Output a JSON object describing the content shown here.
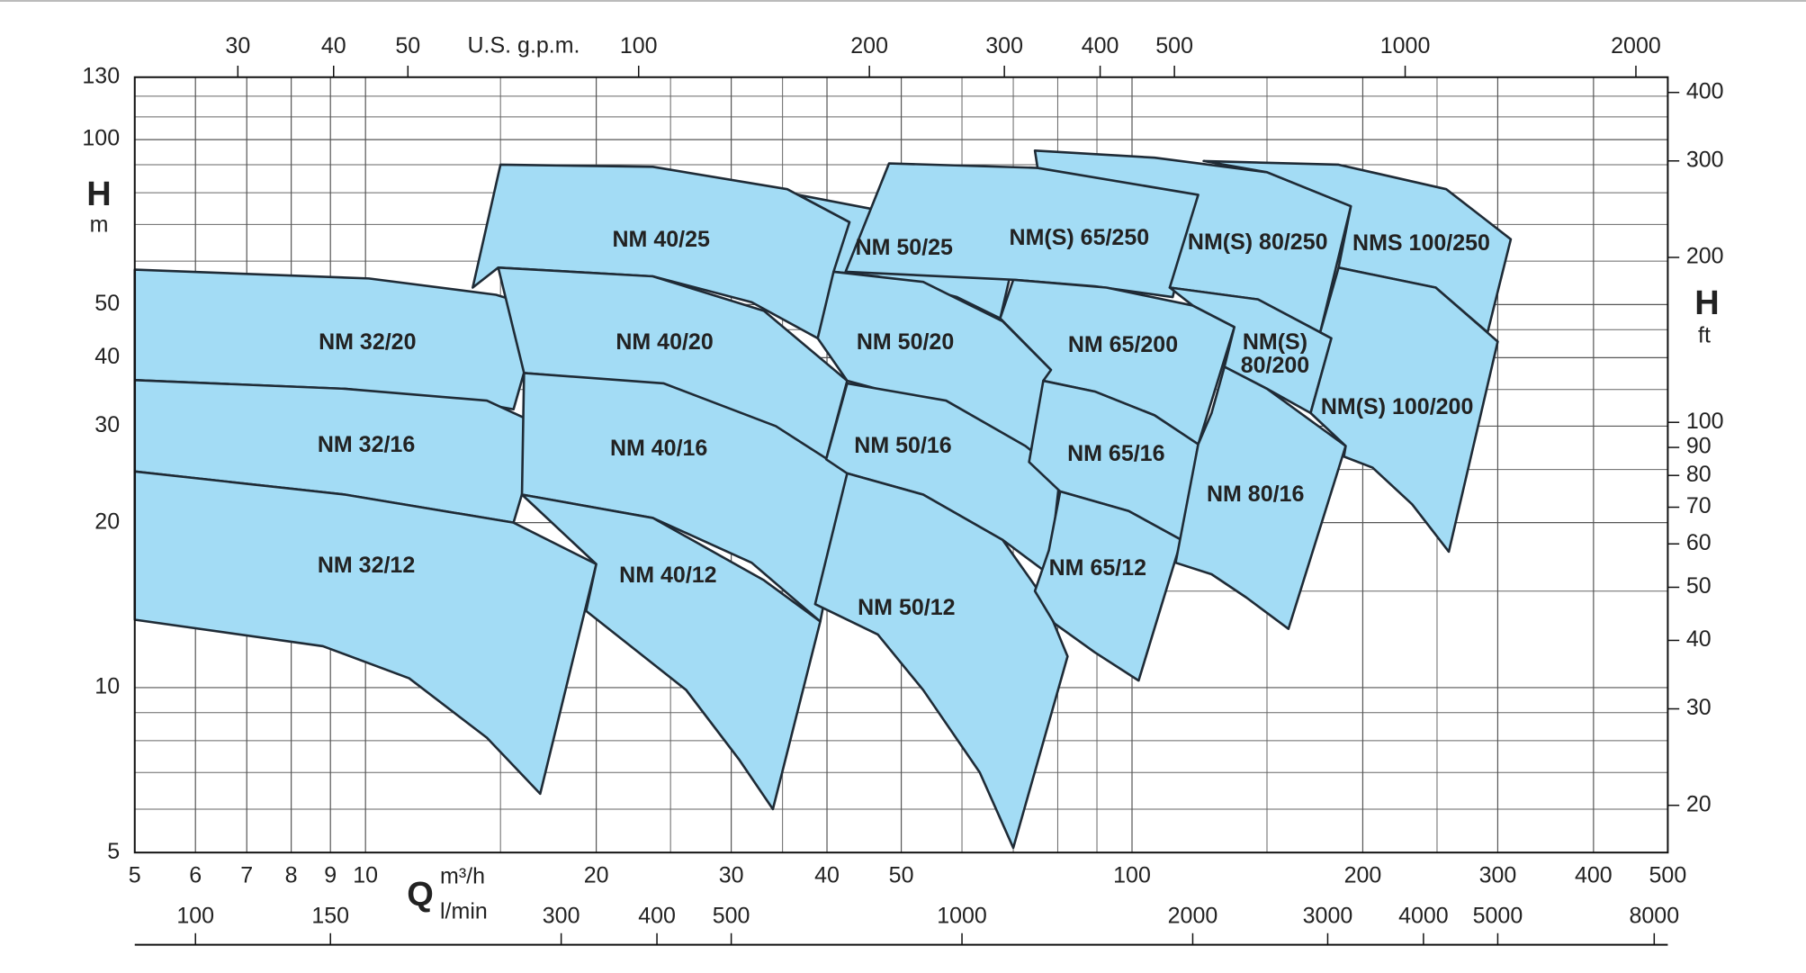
{
  "chart_data": {
    "type": "area",
    "x_label": "Q",
    "x_units": "m³/h",
    "x2_units": "l/min",
    "x3_units": "U.S. g.p.m.",
    "y_label": "H",
    "y_units": "m",
    "y2_label": "H",
    "y2_units": "ft",
    "xscale": "log",
    "yscale": "log",
    "grid": true,
    "color": "#a3dcf5",
    "edge_color": "#1f2b36",
    "xlim": [
      5,
      500
    ],
    "xticks": [
      5,
      6,
      7,
      8,
      9,
      10,
      20,
      30,
      40,
      50,
      100,
      200,
      300,
      400,
      500
    ],
    "xgrid_minor": [
      15,
      25,
      35,
      60,
      70,
      80,
      90,
      150,
      250
    ],
    "ylim": [
      5,
      130
    ],
    "yticks": [
      5,
      10,
      20,
      30,
      40,
      50,
      100,
      130
    ],
    "ygrid_minor": [
      6,
      7,
      8,
      9,
      15,
      25,
      35,
      45,
      60,
      70,
      80,
      90,
      110,
      120
    ],
    "x2lim": [
      83.33,
      8333
    ],
    "x2ticks": [
      100,
      150,
      300,
      400,
      500,
      1000,
      2000,
      3000,
      4000,
      5000,
      8000
    ],
    "x3lim": [
      22.01,
      2201
    ],
    "x3ticks": [
      30,
      40,
      50,
      100,
      200,
      300,
      400,
      500,
      1000,
      2000
    ],
    "y2lim": [
      16.4,
      426.5
    ],
    "y2ticks": [
      20,
      30,
      40,
      50,
      60,
      70,
      80,
      90,
      100,
      200,
      300,
      400
    ],
    "series": [
      {
        "name": "NM 32/20",
        "x": [
          5,
          10.1,
          14.8,
          17,
          15.6,
          13.5,
          9.4,
          5
        ],
        "values": [
          57.9,
          55.8,
          52.1,
          49.1,
          32.2,
          33.4,
          35.1,
          36.4
        ]
      },
      {
        "name": "NM 32/16",
        "x": [
          5,
          9.4,
          14.4,
          17,
          15.6,
          9.4,
          5
        ],
        "values": [
          36.4,
          35.1,
          33.4,
          30,
          20,
          22.5,
          24.8
        ]
      },
      {
        "name": "NM 32/12",
        "x": [
          5,
          9.4,
          15.6,
          20,
          16.9,
          14.4,
          11.4,
          8.8,
          5
        ],
        "values": [
          24.8,
          22.5,
          20,
          16.8,
          6.4,
          8.1,
          10.4,
          11.9,
          13.3
        ]
      },
      {
        "name": "NM 40/25",
        "x": [
          15,
          23.7,
          35.5,
          42.8,
          38.9,
          31.9,
          23.7,
          14.9,
          13.8
        ],
        "values": [
          90,
          89.2,
          81.2,
          70.7,
          43.4,
          50.5,
          56.3,
          58.4,
          53.7
        ]
      },
      {
        "name": "NM 40/20",
        "x": [
          14.9,
          23.7,
          33.1,
          42.5,
          39.9,
          33.1,
          23.7,
          16.1
        ],
        "values": [
          58.4,
          56.3,
          48.7,
          36.3,
          26.1,
          30,
          35.9,
          37.5
        ]
      },
      {
        "name": "NM 40/16",
        "x": [
          16.1,
          24.5,
          34.3,
          42.8,
          39.2,
          31.9,
          23.7,
          16
        ],
        "values": [
          37.5,
          35.9,
          30,
          24.6,
          13.2,
          16.9,
          20.4,
          22.5
        ]
      },
      {
        "name": "NM 40/12",
        "x": [
          16,
          23.7,
          33.1,
          39.2,
          34,
          30.7,
          26.2,
          19.4,
          20
        ],
        "values": [
          22.5,
          20.4,
          15.7,
          13.2,
          6,
          7.4,
          9.9,
          13.8,
          16.8
        ]
      },
      {
        "name": "NM 50/25",
        "x": [
          36.7,
          48.2,
          61.1,
          70,
          67.3,
          59.1,
          46.6,
          40.8,
          42.8
        ],
        "values": [
          79.3,
          73.7,
          66.8,
          59.7,
          47.2,
          51.6,
          56.3,
          57.4,
          70.7
        ]
      },
      {
        "name": "NM 50/20",
        "x": [
          40.8,
          53.4,
          67.8,
          78.4,
          73.4,
          63.3,
          49.7,
          42.5,
          38.9
        ],
        "values": [
          57.4,
          55,
          46.6,
          38,
          25.8,
          29.4,
          34.2,
          36.3,
          43.4
        ]
      },
      {
        "name": "NM 50/16",
        "x": [
          39.9,
          42.5,
          57.2,
          72.6,
          80.6,
          77.9,
          67.8,
          53.4,
          42.5
        ],
        "values": [
          26.1,
          35.9,
          33.4,
          27.6,
          24.6,
          16.1,
          18.6,
          22.5,
          24.6
        ]
      },
      {
        "name": "NM 50/12",
        "x": [
          42.5,
          53.4,
          67.8,
          76.6,
          82.4,
          70,
          63.3,
          53.4,
          46.6,
          38.6
        ],
        "values": [
          24.6,
          22.5,
          18.6,
          14.6,
          11.4,
          5.1,
          7,
          9.9,
          12.5,
          14.2
        ]
      },
      {
        "name": "NM(S) 65/250",
        "x": [
          48.2,
          75.3,
          103,
          122,
          113,
          89.4,
          70,
          42.3
        ],
        "values": [
          90.5,
          88.8,
          84.4,
          79.3,
          51.6,
          54,
          55.5,
          57.4
        ]
      },
      {
        "name": "NM(S) 80/250",
        "x": [
          74.7,
          107,
          150,
          193,
          176,
          146,
          112,
          122,
          75.3
        ],
        "values": [
          95.5,
          92.7,
          87.2,
          75.6,
          44.5,
          51.1,
          53.7,
          79.3,
          88.8
        ]
      },
      {
        "name": "NMS 100/250",
        "x": [
          124,
          186,
          257,
          312,
          291,
          249,
          186,
          193,
          150
        ],
        "values": [
          91.4,
          90,
          81.2,
          65.8,
          44.5,
          53.7,
          58.4,
          75.6,
          87.2
        ]
      },
      {
        "name": "NM 65/200",
        "x": [
          67.3,
          70,
          92.6,
          120,
          136,
          122,
          107,
          89.4,
          76.6,
          78.4
        ],
        "values": [
          47.2,
          55.5,
          53.7,
          49.8,
          45.5,
          27.8,
          31.4,
          34.7,
          36.3,
          38
        ]
      },
      {
        "name": "NM 65/16",
        "x": [
          73.4,
          76.6,
          89.4,
          107,
          122,
          116,
          99,
          80.6
        ],
        "values": [
          25.8,
          36.3,
          34.7,
          31.4,
          27.8,
          18.6,
          21,
          22.8
        ]
      },
      {
        "name": "NM 65/12",
        "x": [
          80.6,
          99,
          116,
          102,
          89.4,
          79.2,
          74.7,
          77.9
        ],
        "values": [
          22.8,
          21,
          18.6,
          10.3,
          11.6,
          13.1,
          15,
          17.8
        ]
      },
      {
        "name": "NM(S) 80/200",
        "x": [
          112,
          146,
          182,
          171,
          150,
          132,
          136,
          120
        ],
        "values": [
          53.7,
          51.1,
          43.4,
          31.7,
          35.1,
          38.5,
          45.5,
          49.8
        ]
      },
      {
        "name": "NM 80/16",
        "x": [
          127,
          132,
          150,
          190,
          160,
          141,
          127,
          114,
          122
        ],
        "values": [
          31.7,
          38.5,
          35.1,
          27.6,
          12.8,
          14.6,
          16.1,
          16.9,
          27.8
        ]
      },
      {
        "name": "NM(S) 100/200",
        "x": [
          176,
          186,
          249,
          300,
          259,
          232,
          206,
          189,
          190,
          171,
          182
        ],
        "values": [
          44.5,
          58.4,
          53.7,
          42.8,
          17.7,
          21.6,
          25.2,
          26.4,
          27.6,
          31.7,
          43.4
        ]
      }
    ]
  }
}
